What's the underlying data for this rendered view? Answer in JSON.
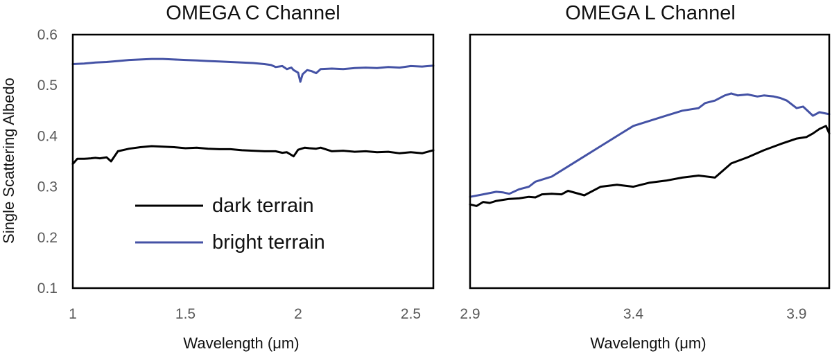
{
  "figure": {
    "shared_ylabel": "Single Scattering Albedo",
    "legend_title_dark": "dark terrain",
    "legend_title_bright": "bright terrain"
  },
  "colors": {
    "dark_terrain": "#000000",
    "bright_terrain": "#4452A5"
  },
  "chart_data": [
    {
      "type": "line",
      "title": "OMEGA C Channel",
      "xlabel": "Wavelength (μm)",
      "ylabel": "Single Scattering Albedo",
      "xlim": [
        1.0,
        2.6
      ],
      "ylim": [
        0.1,
        0.6
      ],
      "xticks": [
        1,
        1.5,
        2,
        2.5
      ],
      "xtick_labels": [
        "1",
        "1.5",
        "2",
        "2.5"
      ],
      "yticks": [
        0.1,
        0.2,
        0.3,
        0.4,
        0.5,
        0.6
      ],
      "ytick_labels": [
        "0.1",
        "0.2",
        "0.3",
        "0.4",
        "0.5",
        "0.6"
      ],
      "legend": {
        "entries": [
          "dark terrain",
          "bright terrain"
        ],
        "placement": "lower-center"
      },
      "series": [
        {
          "name": "dark terrain",
          "color": "#000000",
          "x": [
            1.0,
            1.02,
            1.05,
            1.08,
            1.1,
            1.12,
            1.15,
            1.17,
            1.2,
            1.25,
            1.3,
            1.35,
            1.4,
            1.45,
            1.5,
            1.55,
            1.6,
            1.65,
            1.7,
            1.75,
            1.8,
            1.85,
            1.9,
            1.93,
            1.95,
            1.98,
            2.0,
            2.03,
            2.05,
            2.08,
            2.1,
            2.15,
            2.2,
            2.25,
            2.3,
            2.35,
            2.4,
            2.45,
            2.5,
            2.55,
            2.6
          ],
          "y": [
            0.345,
            0.355,
            0.355,
            0.356,
            0.357,
            0.356,
            0.358,
            0.35,
            0.37,
            0.375,
            0.378,
            0.38,
            0.379,
            0.378,
            0.376,
            0.377,
            0.375,
            0.374,
            0.374,
            0.372,
            0.371,
            0.37,
            0.37,
            0.367,
            0.368,
            0.36,
            0.373,
            0.377,
            0.376,
            0.375,
            0.377,
            0.37,
            0.371,
            0.369,
            0.37,
            0.368,
            0.369,
            0.366,
            0.368,
            0.366,
            0.372
          ]
        },
        {
          "name": "bright terrain",
          "color": "#4452A5",
          "x": [
            1.0,
            1.05,
            1.1,
            1.15,
            1.2,
            1.25,
            1.3,
            1.35,
            1.4,
            1.45,
            1.5,
            1.55,
            1.6,
            1.65,
            1.7,
            1.75,
            1.8,
            1.85,
            1.88,
            1.9,
            1.93,
            1.95,
            1.97,
            1.98,
            2.0,
            2.01,
            2.02,
            2.04,
            2.06,
            2.08,
            2.1,
            2.15,
            2.2,
            2.25,
            2.3,
            2.35,
            2.4,
            2.45,
            2.5,
            2.55,
            2.6
          ],
          "y": [
            0.542,
            0.543,
            0.545,
            0.546,
            0.548,
            0.55,
            0.551,
            0.552,
            0.552,
            0.551,
            0.55,
            0.549,
            0.548,
            0.547,
            0.546,
            0.545,
            0.544,
            0.542,
            0.54,
            0.536,
            0.538,
            0.532,
            0.535,
            0.53,
            0.525,
            0.507,
            0.522,
            0.53,
            0.528,
            0.524,
            0.532,
            0.533,
            0.532,
            0.534,
            0.535,
            0.534,
            0.536,
            0.535,
            0.538,
            0.537,
            0.539
          ]
        }
      ]
    },
    {
      "type": "line",
      "title": "OMEGA L Channel",
      "xlabel": "Wavelength (μm)",
      "xlim": [
        2.9,
        4.0
      ],
      "ylim": [
        0.1,
        0.6
      ],
      "xticks": [
        2.9,
        3.4,
        3.9
      ],
      "xtick_labels": [
        "2.9",
        "3.4",
        "3.9"
      ],
      "series": [
        {
          "name": "dark terrain",
          "color": "#000000",
          "x": [
            2.9,
            2.92,
            2.94,
            2.96,
            2.98,
            3.0,
            3.02,
            3.05,
            3.08,
            3.1,
            3.12,
            3.15,
            3.18,
            3.2,
            3.25,
            3.3,
            3.35,
            3.4,
            3.45,
            3.5,
            3.55,
            3.6,
            3.65,
            3.7,
            3.75,
            3.8,
            3.85,
            3.9,
            3.93,
            3.95,
            3.97,
            3.99,
            4.0
          ],
          "y": [
            0.265,
            0.262,
            0.27,
            0.268,
            0.272,
            0.274,
            0.276,
            0.277,
            0.28,
            0.279,
            0.285,
            0.286,
            0.285,
            0.292,
            0.283,
            0.3,
            0.304,
            0.3,
            0.308,
            0.312,
            0.318,
            0.322,
            0.318,
            0.346,
            0.358,
            0.372,
            0.384,
            0.395,
            0.398,
            0.405,
            0.414,
            0.42,
            0.405
          ]
        },
        {
          "name": "bright terrain",
          "color": "#4452A5",
          "x": [
            2.9,
            2.94,
            2.98,
            3.0,
            3.02,
            3.05,
            3.08,
            3.1,
            3.15,
            3.2,
            3.25,
            3.3,
            3.35,
            3.4,
            3.45,
            3.5,
            3.55,
            3.6,
            3.62,
            3.65,
            3.68,
            3.7,
            3.72,
            3.75,
            3.78,
            3.8,
            3.83,
            3.85,
            3.87,
            3.88,
            3.9,
            3.92,
            3.95,
            3.97,
            4.0
          ],
          "y": [
            0.28,
            0.285,
            0.29,
            0.289,
            0.286,
            0.295,
            0.3,
            0.31,
            0.32,
            0.34,
            0.36,
            0.38,
            0.4,
            0.42,
            0.43,
            0.44,
            0.45,
            0.455,
            0.465,
            0.47,
            0.48,
            0.484,
            0.48,
            0.482,
            0.478,
            0.48,
            0.478,
            0.475,
            0.47,
            0.465,
            0.455,
            0.458,
            0.44,
            0.447,
            0.443
          ]
        }
      ]
    }
  ]
}
